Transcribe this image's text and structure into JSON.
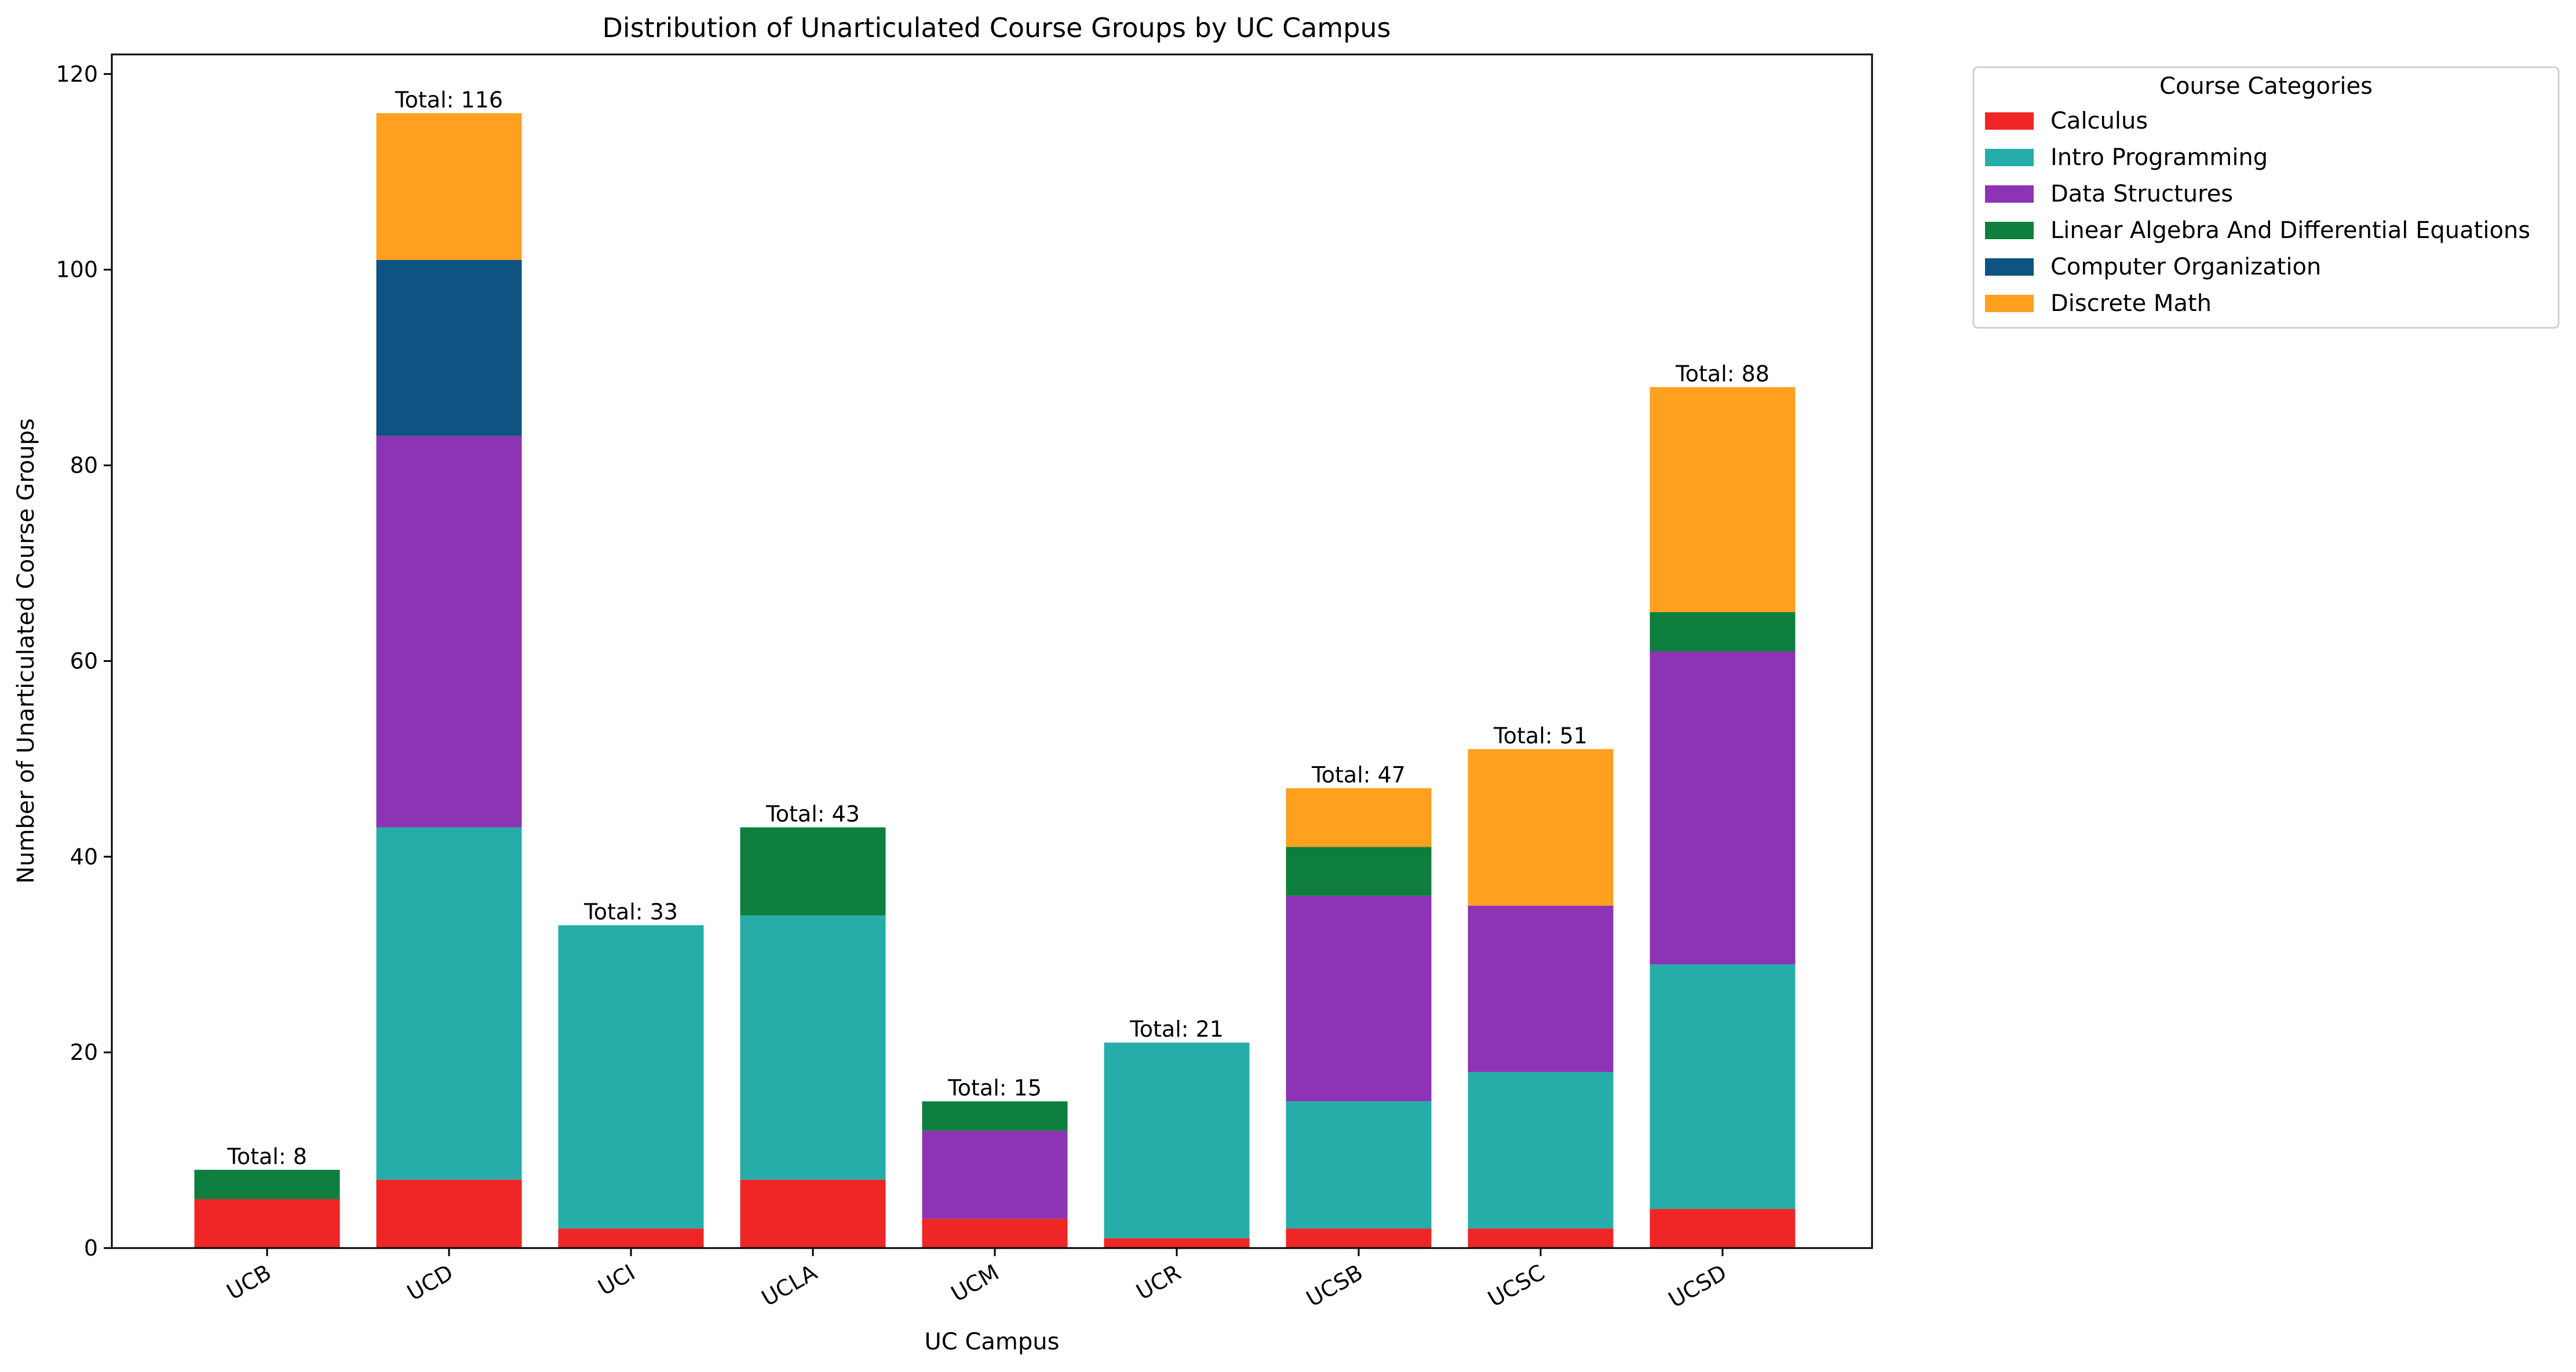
{
  "chart_data": {
    "type": "bar",
    "stacked": true,
    "title": "Distribution of Unarticulated Course Groups by UC Campus",
    "xlabel": "UC Campus",
    "ylabel": "Number of Unarticulated Course Groups",
    "ylim": [
      0,
      122
    ],
    "yticks": [
      0,
      20,
      40,
      60,
      80,
      100,
      120
    ],
    "categories": [
      "UCB",
      "UCD",
      "UCI",
      "UCLA",
      "UCM",
      "UCR",
      "UCSB",
      "UCSC",
      "UCSD"
    ],
    "series": [
      {
        "name": "Calculus",
        "color": "#ee2626",
        "values": [
          5,
          7,
          2,
          7,
          3,
          1,
          2,
          2,
          4
        ]
      },
      {
        "name": "Intro Programming",
        "color": "#26ada9",
        "values": [
          0,
          36,
          31,
          27,
          0,
          20,
          13,
          16,
          25
        ]
      },
      {
        "name": "Data Structures",
        "color": "#8c34b4",
        "values": [
          0,
          40,
          0,
          0,
          9,
          0,
          21,
          17,
          32
        ]
      },
      {
        "name": "Linear Algebra And Differential Equations",
        "color": "#0d7e3e",
        "values": [
          3,
          0,
          0,
          9,
          3,
          0,
          5,
          0,
          4
        ]
      },
      {
        "name": "Computer Organization",
        "color": "#0e5382",
        "values": [
          0,
          18,
          0,
          0,
          0,
          0,
          0,
          0,
          0
        ]
      },
      {
        "name": "Discrete Math",
        "color": "#ffa01e",
        "values": [
          0,
          15,
          0,
          0,
          0,
          0,
          6,
          16,
          23
        ]
      }
    ],
    "totals": [
      "Total: 8",
      "Total: 116",
      "Total: 33",
      "Total: 43",
      "Total: 15",
      "Total: 21",
      "Total: 47",
      "Total: 51",
      "Total: 88"
    ],
    "legend": {
      "title": "Course Categories",
      "placement": "outside-top-right"
    },
    "grid": false
  }
}
